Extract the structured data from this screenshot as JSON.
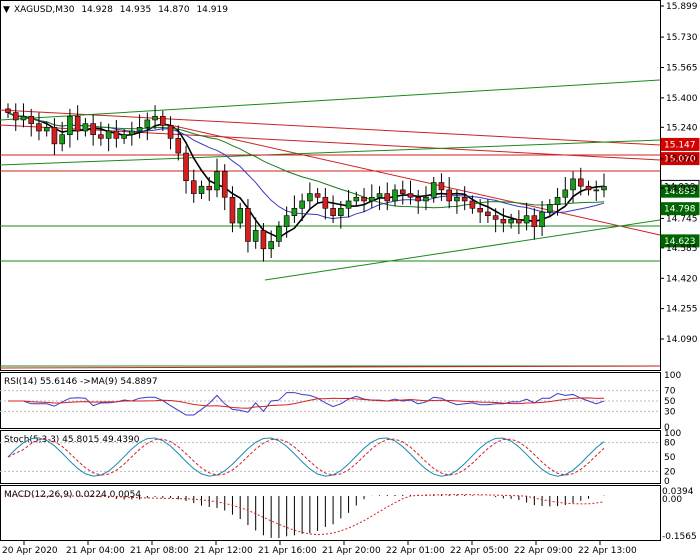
{
  "header": {
    "symbol": "XAGUSD,M30",
    "open": "14.928",
    "high": "14.935",
    "low": "14.870",
    "close": "14.919"
  },
  "price_axis": {
    "ticks": [
      "15.899",
      "15.730",
      "15.565",
      "15.400",
      "15.240",
      "15.070",
      "14.910",
      "14.745",
      "14.585",
      "14.420",
      "14.255",
      "14.090"
    ],
    "tags": [
      {
        "label": "15.147",
        "price": 15.147,
        "color": "#d40000"
      },
      {
        "label": "15.070",
        "price": 15.07,
        "color": "#d40000"
      },
      {
        "label": "14.919",
        "price": 14.919,
        "color": "#ffffff"
      },
      {
        "label": "14.893",
        "price": 14.893,
        "color": "#006400"
      },
      {
        "label": "14.798",
        "price": 14.798,
        "color": "#006400"
      },
      {
        "label": "14.623",
        "price": 14.623,
        "color": "#006400"
      }
    ]
  },
  "time_axis": [
    "20 Apr 2020",
    "21 Apr 04:00",
    "21 Apr 08:00",
    "21 Apr 12:00",
    "21 Apr 16:00",
    "21 Apr 20:00",
    "22 Apr 01:00",
    "22 Apr 05:00",
    "22 Apr 09:00",
    "22 Apr 13:00"
  ],
  "rsi": {
    "label": "RSI(14) 55.6146  ->MA(9) 54.8897",
    "levels": [
      "100",
      "70",
      "50",
      "30",
      "0"
    ]
  },
  "stoch": {
    "label": "Stoch(5,3,3) 45.8015 49.4390",
    "levels": [
      "100",
      "80",
      "50",
      "20",
      "0"
    ]
  },
  "macd": {
    "label": "MACD(12,26,9) 0.0224 0.0054",
    "levels": [
      "0.0394",
      "0.00",
      "-0.1565"
    ]
  },
  "colors": {
    "bull": "#1a9a1a",
    "bear": "#d42020",
    "ma_fast": "#000000",
    "ma_slow": "#3a3ac8",
    "ma_long": "#1a7a1a",
    "trend_red": "#cc2222",
    "trend_green": "#1a8a1a"
  },
  "chart_data": {
    "type": "candlestick",
    "closes": [
      15.32,
      15.28,
      15.3,
      15.26,
      15.22,
      15.24,
      15.15,
      15.2,
      15.3,
      15.22,
      15.26,
      15.2,
      15.18,
      15.22,
      15.18,
      15.2,
      15.22,
      15.24,
      15.28,
      15.3,
      15.25,
      15.18,
      15.1,
      14.95,
      14.88,
      14.92,
      14.9,
      15.0,
      14.86,
      14.72,
      14.8,
      14.62,
      14.68,
      14.58,
      14.62,
      14.7,
      14.76,
      14.8,
      14.84,
      14.88,
      14.86,
      14.8,
      14.76,
      14.8,
      14.84,
      14.86,
      14.84,
      14.86,
      14.88,
      14.84,
      14.9,
      14.88,
      14.86,
      14.84,
      14.86,
      14.94,
      14.9,
      14.84,
      14.86,
      14.84,
      14.8,
      14.78,
      14.76,
      14.74,
      14.72,
      14.74,
      14.72,
      14.76,
      14.7,
      14.78,
      14.82,
      14.86,
      14.9,
      14.96,
      14.92,
      14.9,
      14.9,
      14.919
    ]
  }
}
